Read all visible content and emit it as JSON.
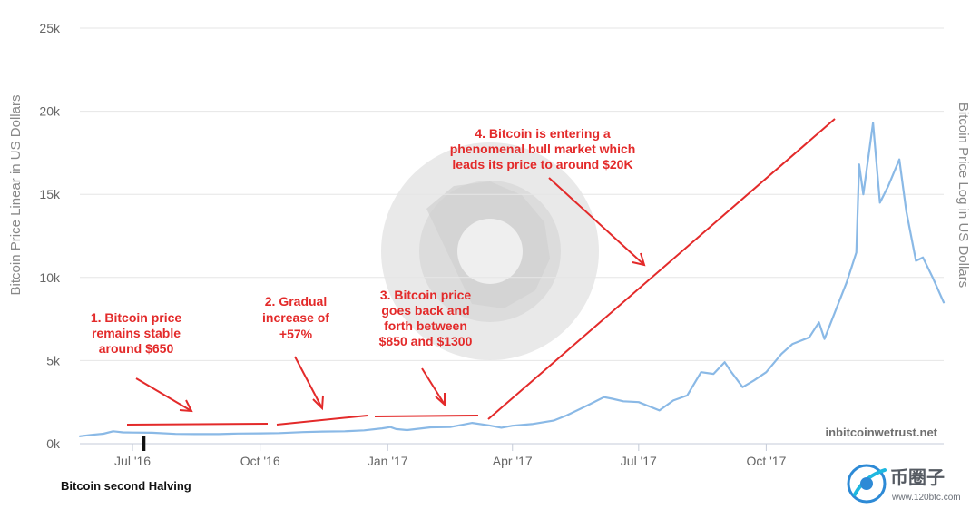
{
  "chart_data": {
    "type": "line",
    "title": "",
    "ylabel_left": "Bitcoin Price Linear in US Dollars",
    "ylabel_right": "Bitcoin Price Log in US Dollars",
    "ylim": [
      0,
      25000
    ],
    "y_ticks": [
      {
        "value": 0,
        "label": "0k"
      },
      {
        "value": 5000,
        "label": "5k"
      },
      {
        "value": 10000,
        "label": "10k"
      },
      {
        "value": 15000,
        "label": "15k"
      },
      {
        "value": 20000,
        "label": "20k"
      },
      {
        "value": 25000,
        "label": "25k"
      }
    ],
    "x_range": [
      "2016-05-24",
      "2018-02-06"
    ],
    "x_ticks": [
      {
        "date": "2016-07-01",
        "label": "Jul '16"
      },
      {
        "date": "2016-10-01",
        "label": "Oct '16"
      },
      {
        "date": "2017-01-01",
        "label": "Jan '17"
      },
      {
        "date": "2017-04-01",
        "label": "Apr '17"
      },
      {
        "date": "2017-07-01",
        "label": "Jul '17"
      },
      {
        "date": "2017-10-01",
        "label": "Oct '17"
      }
    ],
    "grid": "horizontal",
    "line_color": "#8ab9e6",
    "series": [
      {
        "x": [
          "2016-05-24",
          "2016-06-01",
          "2016-06-10",
          "2016-06-17",
          "2016-06-24",
          "2016-07-01",
          "2016-07-15",
          "2016-08-01",
          "2016-08-15",
          "2016-09-01",
          "2016-09-15",
          "2016-10-01",
          "2016-10-15",
          "2016-11-01",
          "2016-11-15",
          "2016-12-01",
          "2016-12-15",
          "2016-12-28",
          "2017-01-03",
          "2017-01-07",
          "2017-01-15",
          "2017-02-01",
          "2017-02-15",
          "2017-03-03",
          "2017-03-15",
          "2017-03-24",
          "2017-04-01",
          "2017-04-15",
          "2017-05-01",
          "2017-05-10",
          "2017-05-25",
          "2017-06-06",
          "2017-06-12",
          "2017-06-20",
          "2017-07-01",
          "2017-07-16",
          "2017-07-26",
          "2017-08-05",
          "2017-08-15",
          "2017-08-24",
          "2017-09-01",
          "2017-09-05",
          "2017-09-14",
          "2017-09-22",
          "2017-10-01",
          "2017-10-12",
          "2017-10-20",
          "2017-11-01",
          "2017-11-08",
          "2017-11-12",
          "2017-11-20",
          "2017-11-28",
          "2017-12-05",
          "2017-12-07",
          "2017-12-10",
          "2017-12-17",
          "2017-12-22",
          "2017-12-28",
          "2018-01-05",
          "2018-01-10",
          "2018-01-17",
          "2018-01-22",
          "2018-01-29",
          "2018-02-06"
        ],
        "y": [
          450,
          530,
          600,
          750,
          680,
          670,
          660,
          590,
          580,
          580,
          610,
          620,
          640,
          700,
          730,
          750,
          800,
          920,
          1000,
          880,
          820,
          980,
          1000,
          1250,
          1100,
          960,
          1080,
          1180,
          1400,
          1700,
          2300,
          2800,
          2700,
          2550,
          2500,
          2000,
          2600,
          2900,
          4300,
          4200,
          4900,
          4400,
          3400,
          3800,
          4300,
          5400,
          6000,
          6400,
          7300,
          6300,
          8000,
          9700,
          11500,
          16800,
          15000,
          19300,
          14500,
          15500,
          17100,
          14000,
          11000,
          11200,
          10000,
          8500
        ]
      }
    ]
  },
  "annotations": {
    "note1": [
      "1. Bitcoin price",
      "remains stable",
      "around $650"
    ],
    "note2": [
      "2. Gradual",
      "increase of",
      "+57%"
    ],
    "note3": [
      "3. Bitcoin price",
      "goes back and",
      "forth between",
      "$850 and $1300"
    ],
    "note4": [
      "4. Bitcoin is entering a",
      "phenomenal bull market which",
      "leads its price to around $20K"
    ],
    "halving_label": "Bitcoin second Halving",
    "halving_date": "2016-07-09",
    "annotation_color": "#e32a2a"
  },
  "source_label": "inbitcoinwetrust.net",
  "brand": {
    "name": "币圈子",
    "url": "www.120btc.com"
  }
}
